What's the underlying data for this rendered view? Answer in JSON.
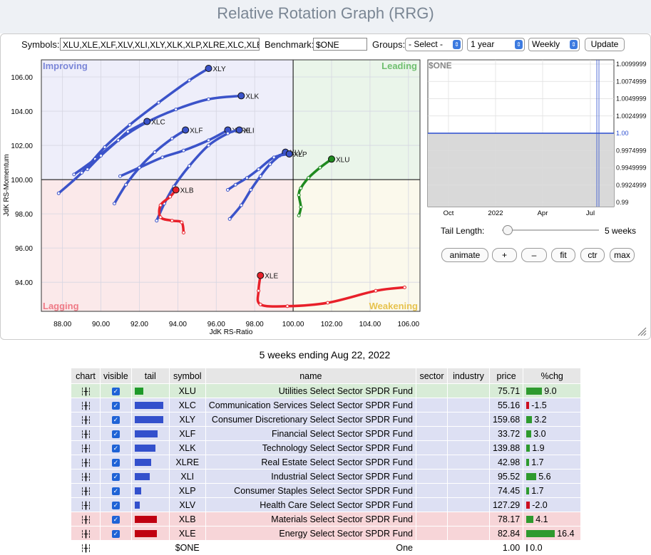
{
  "page": {
    "title": "Relative Rotation Graph (RRG)"
  },
  "controls": {
    "symbols_label": "Symbols:",
    "symbols_value": "XLU,XLE,XLF,XLV,XLI,XLY,XLK,XLP,XLRE,XLC,XLB",
    "benchmark_label": "Benchmark:",
    "benchmark_value": "$ONE",
    "groups_label": "Groups:",
    "groups_value": "- Select -",
    "period_value": "1 year",
    "frequency_value": "Weekly",
    "update_label": "Update"
  },
  "quadrants": {
    "improving": "Improving",
    "leading": "Leading",
    "lagging": "Lagging",
    "weakening": "Weakening"
  },
  "chart_data": {
    "type": "scatter",
    "xlabel": "JdK RS-Ratio",
    "ylabel": "JdK RS-Momentum",
    "xlim": [
      86.9,
      106.6
    ],
    "ylim": [
      92.3,
      107.0
    ],
    "x_ticks": [
      "88.00",
      "90.00",
      "92.00",
      "94.00",
      "96.00",
      "98.00",
      "100.00",
      "102.00",
      "104.00",
      "106.00"
    ],
    "y_ticks": [
      "94.00",
      "96.00",
      "98.00",
      "100.00",
      "102.00",
      "104.00",
      "106.00"
    ],
    "center": [
      100,
      100
    ],
    "series": [
      {
        "name": "XLY",
        "color": "#3b53c9",
        "points": [
          [
            87.8,
            99.2
          ],
          [
            89.0,
            100.4
          ],
          [
            90.2,
            101.9
          ],
          [
            91.5,
            103.2
          ],
          [
            93.0,
            104.5
          ],
          [
            94.6,
            105.8
          ],
          [
            95.6,
            106.5
          ]
        ]
      },
      {
        "name": "XLK",
        "color": "#3b53c9",
        "points": [
          [
            88.6,
            100.3
          ],
          [
            89.7,
            101.2
          ],
          [
            90.9,
            102.3
          ],
          [
            92.3,
            103.3
          ],
          [
            93.9,
            104.1
          ],
          [
            95.6,
            104.7
          ],
          [
            97.3,
            104.9
          ]
        ]
      },
      {
        "name": "XLC",
        "color": "#3b53c9",
        "points": [
          [
            89.3,
            100.6
          ],
          [
            90.0,
            101.4
          ],
          [
            90.9,
            102.3
          ],
          [
            91.4,
            102.8
          ],
          [
            92.4,
            103.4
          ]
        ]
      },
      {
        "name": "XLF",
        "color": "#3b53c9",
        "points": [
          [
            90.7,
            98.6
          ],
          [
            91.3,
            99.7
          ],
          [
            92.0,
            100.7
          ],
          [
            92.8,
            101.6
          ],
          [
            93.7,
            102.4
          ],
          [
            94.4,
            102.9
          ]
        ]
      },
      {
        "name": "XLRE",
        "color": "#3b53c9",
        "points": [
          [
            91.0,
            100.2
          ],
          [
            92.0,
            100.7
          ],
          [
            93.2,
            101.3
          ],
          [
            94.3,
            101.7
          ],
          [
            95.6,
            102.3
          ],
          [
            96.6,
            102.9
          ]
        ]
      },
      {
        "name": "XLI",
        "color": "#3b53c9",
        "points": [
          [
            92.9,
            97.6
          ],
          [
            93.3,
            98.6
          ],
          [
            93.8,
            99.6
          ],
          [
            94.6,
            100.8
          ],
          [
            95.6,
            102.0
          ],
          [
            96.6,
            102.7
          ],
          [
            97.2,
            102.9
          ]
        ]
      },
      {
        "name": "XLV",
        "color": "#3b53c9",
        "points": [
          [
            96.7,
            97.7
          ],
          [
            97.3,
            98.5
          ],
          [
            97.8,
            99.4
          ],
          [
            98.3,
            100.2
          ],
          [
            98.8,
            100.9
          ],
          [
            99.3,
            101.4
          ],
          [
            99.6,
            101.6
          ]
        ]
      },
      {
        "name": "XLP",
        "color": "#3b53c9",
        "points": [
          [
            96.6,
            99.4
          ],
          [
            97.0,
            99.7
          ],
          [
            97.6,
            100.1
          ],
          [
            98.2,
            100.6
          ],
          [
            99.0,
            101.3
          ],
          [
            99.8,
            101.5
          ]
        ]
      },
      {
        "name": "XLU",
        "color": "#1f8a1f",
        "points": [
          [
            100.3,
            97.9
          ],
          [
            100.4,
            98.4
          ],
          [
            100.3,
            99.1
          ],
          [
            100.4,
            99.5
          ],
          [
            100.8,
            100.1
          ],
          [
            101.4,
            100.7
          ],
          [
            102.0,
            101.2
          ]
        ]
      },
      {
        "name": "XLB",
        "color": "#e8202a",
        "points": [
          [
            94.3,
            96.9
          ],
          [
            94.2,
            97.5
          ],
          [
            93.7,
            97.6
          ],
          [
            93.1,
            97.8
          ],
          [
            93.1,
            98.5
          ],
          [
            93.6,
            99.0
          ],
          [
            93.9,
            99.4
          ]
        ]
      },
      {
        "name": "XLE",
        "color": "#e8202a",
        "points": [
          [
            105.8,
            93.7
          ],
          [
            104.3,
            93.5
          ],
          [
            101.8,
            92.8
          ],
          [
            99.7,
            92.6
          ],
          [
            98.3,
            92.7
          ],
          [
            98.2,
            93.5
          ],
          [
            98.3,
            94.4
          ]
        ]
      }
    ]
  },
  "side_chart": {
    "title": "$ONE",
    "y_ticks": [
      "1.0099999",
      "1.0074999",
      "1.0049999",
      "1.0024999",
      "1.00",
      "0.9974999",
      "0.9949999",
      "0.9924999",
      "0.99"
    ],
    "x_ticks": [
      "Oct",
      "2022",
      "Apr",
      "Jul"
    ],
    "value": 1.0
  },
  "tail": {
    "label": "Tail Length:",
    "value_text": "5 weeks",
    "value": 5
  },
  "buttons": {
    "animate": "animate",
    "plus": "+",
    "minus": "–",
    "fit": "fit",
    "ctr": "ctr",
    "max": "max"
  },
  "caption": "5 weeks ending Aug 22, 2022",
  "table": {
    "headers": [
      "chart",
      "visible",
      "tail",
      "symbol",
      "name",
      "sector",
      "industry",
      "price",
      "%chg"
    ],
    "rows": [
      {
        "symbol": "XLU",
        "name": "Utilities Select Sector SPDR Fund",
        "price": "75.71",
        "chg": "9.0",
        "chg_val": 9.0,
        "tail_len": 12,
        "tail_color": "#1f9a2a",
        "row": "green"
      },
      {
        "symbol": "XLC",
        "name": "Communication Services Select Sector SPDR Fund",
        "price": "55.16",
        "chg": "-1.5",
        "chg_val": -1.5,
        "tail_len": 40,
        "tail_color": "#3350cc",
        "row": "blue"
      },
      {
        "symbol": "XLY",
        "name": "Consumer Discretionary Select Sector SPDR Fund",
        "price": "159.68",
        "chg": "3.2",
        "chg_val": 3.2,
        "tail_len": 40,
        "tail_color": "#3350cc",
        "row": "blue"
      },
      {
        "symbol": "XLF",
        "name": "Financial Select Sector SPDR Fund",
        "price": "33.72",
        "chg": "3.0",
        "chg_val": 3.0,
        "tail_len": 32,
        "tail_color": "#3350cc",
        "row": "blue"
      },
      {
        "symbol": "XLK",
        "name": "Technology Select Sector SPDR Fund",
        "price": "139.88",
        "chg": "1.9",
        "chg_val": 1.9,
        "tail_len": 29,
        "tail_color": "#3350cc",
        "row": "blue"
      },
      {
        "symbol": "XLRE",
        "name": "Real Estate Select Sector SPDR Fund",
        "price": "42.98",
        "chg": "1.7",
        "chg_val": 1.7,
        "tail_len": 23,
        "tail_color": "#3350cc",
        "row": "blue"
      },
      {
        "symbol": "XLI",
        "name": "Industrial Select Sector SPDR Fund",
        "price": "95.52",
        "chg": "5.6",
        "chg_val": 5.6,
        "tail_len": 21,
        "tail_color": "#3350cc",
        "row": "blue"
      },
      {
        "symbol": "XLP",
        "name": "Consumer Staples Select Sector SPDR Fund",
        "price": "74.45",
        "chg": "1.7",
        "chg_val": 1.7,
        "tail_len": 9,
        "tail_color": "#3350cc",
        "row": "blue"
      },
      {
        "symbol": "XLV",
        "name": "Health Care Select Sector SPDR Fund",
        "price": "127.29",
        "chg": "-2.0",
        "chg_val": -2.0,
        "tail_len": 7,
        "tail_color": "#3350cc",
        "row": "blue"
      },
      {
        "symbol": "XLB",
        "name": "Materials Select Sector SPDR Fund",
        "price": "78.17",
        "chg": "4.1",
        "chg_val": 4.1,
        "tail_len": 31,
        "tail_color": "#c00010",
        "row": "red"
      },
      {
        "symbol": "XLE",
        "name": "Energy Select Sector SPDR Fund",
        "price": "82.84",
        "chg": "16.4",
        "chg_val": 16.4,
        "tail_len": 31,
        "tail_color": "#c00010",
        "row": "red"
      },
      {
        "symbol": "$ONE",
        "name": "One",
        "price": "1.00",
        "chg": "0.0",
        "chg_val": 0.0,
        "tail_len": 0,
        "tail_color": "#fff",
        "row": "white"
      }
    ]
  }
}
